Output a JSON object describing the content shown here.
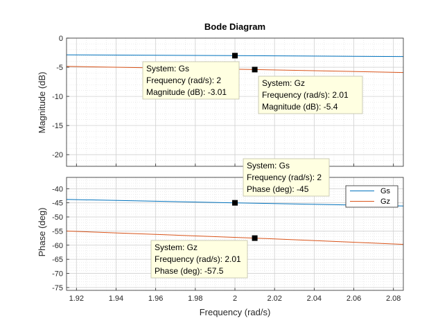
{
  "chart_data": {
    "type": "line",
    "title": "Bode Diagram",
    "xlabel": "Frequency  (rad/s)",
    "xlim": [
      1.915,
      2.085
    ],
    "x_ticks": [
      "1.92",
      "1.94",
      "1.96",
      "1.98",
      "2",
      "2.02",
      "2.04",
      "2.06",
      "2.08"
    ],
    "grid": true,
    "colors": {
      "Gs": "#0072bd",
      "Gz": "#d95319",
      "datatip_bg": "#ffffe1"
    },
    "subplots": [
      {
        "ylabel": "Magnitude (dB)",
        "ylim": [
          -22,
          0
        ],
        "y_ticks": [
          "0",
          "-5",
          "-10",
          "-15",
          "-20"
        ],
        "series": [
          {
            "name": "Gs",
            "x": [
              1.915,
              2.0,
              2.085
            ],
            "values": [
              -2.86,
              -3.01,
              -3.16
            ]
          },
          {
            "name": "Gz",
            "x": [
              1.915,
              2.01,
              2.085
            ],
            "values": [
              -4.85,
              -5.4,
              -5.9
            ]
          }
        ],
        "datatips": [
          {
            "series": "Gs",
            "x": 2.0,
            "y": -3.01,
            "lines": [
              "System: Gs",
              "Frequency (rad/s): 2",
              "Magnitude (dB): -3.01"
            ]
          },
          {
            "series": "Gz",
            "x": 2.01,
            "y": -5.4,
            "lines": [
              "System: Gz",
              "Frequency (rad/s): 2.01",
              "Magnitude (dB): -5.4"
            ]
          }
        ]
      },
      {
        "ylabel": "Phase (deg)",
        "ylim": [
          -76,
          -36
        ],
        "y_ticks": [
          "-40",
          "-45",
          "-50",
          "-55",
          "-60",
          "-65",
          "-70",
          "-75"
        ],
        "legend": {
          "placement": "top-right",
          "entries": [
            "Gs",
            "Gz"
          ]
        },
        "series": [
          {
            "name": "Gs",
            "x": [
              1.915,
              2.0,
              2.085
            ],
            "values": [
              -43.8,
              -45.0,
              -46.1
            ]
          },
          {
            "name": "Gz",
            "x": [
              1.915,
              2.01,
              2.085
            ],
            "values": [
              -55.0,
              -57.5,
              -59.7
            ]
          }
        ],
        "datatips": [
          {
            "series": "Gs",
            "x": 2.0,
            "y": -45,
            "lines": [
              "System: Gs",
              "Frequency (rad/s): 2",
              "Phase (deg): -45"
            ]
          },
          {
            "series": "Gz",
            "x": 2.01,
            "y": -57.5,
            "lines": [
              "System: Gz",
              "Frequency (rad/s): 2.01",
              "Phase (deg): -57.5"
            ]
          }
        ]
      }
    ]
  }
}
